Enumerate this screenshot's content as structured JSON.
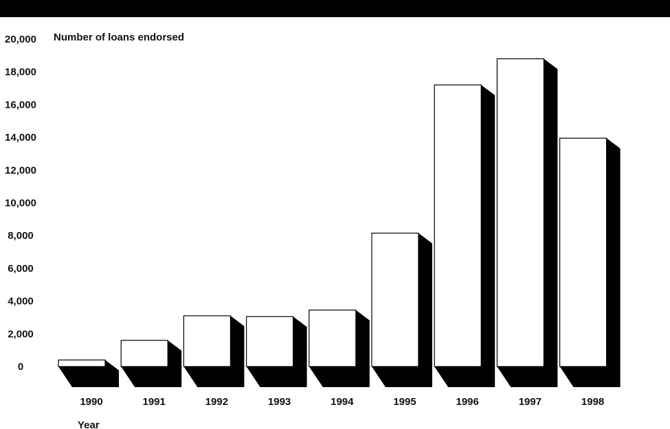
{
  "chart_data": {
    "type": "bar",
    "title": "",
    "ylabel": "Number of loans endorsed",
    "xlabel": "Year",
    "categories": [
      "1990",
      "1991",
      "1992",
      "1993",
      "1994",
      "1995",
      "1996",
      "1997",
      "1998"
    ],
    "values": [
      400,
      1600,
      3100,
      3050,
      3450,
      8150,
      17200,
      18800,
      13950
    ],
    "y_ticks": [
      "0",
      "2,000",
      "4,000",
      "6,000",
      "8,000",
      "10,000",
      "12,000",
      "14,000",
      "16,000",
      "18,000",
      "20,000"
    ],
    "ylim": [
      0,
      20000
    ],
    "grid": false,
    "legend": "none",
    "style": "3d-shadow",
    "colors": {
      "bar_face": "#ffffff",
      "bar_outline": "#000000",
      "bar_shadow": "#000000",
      "top_band": "#000000"
    }
  }
}
